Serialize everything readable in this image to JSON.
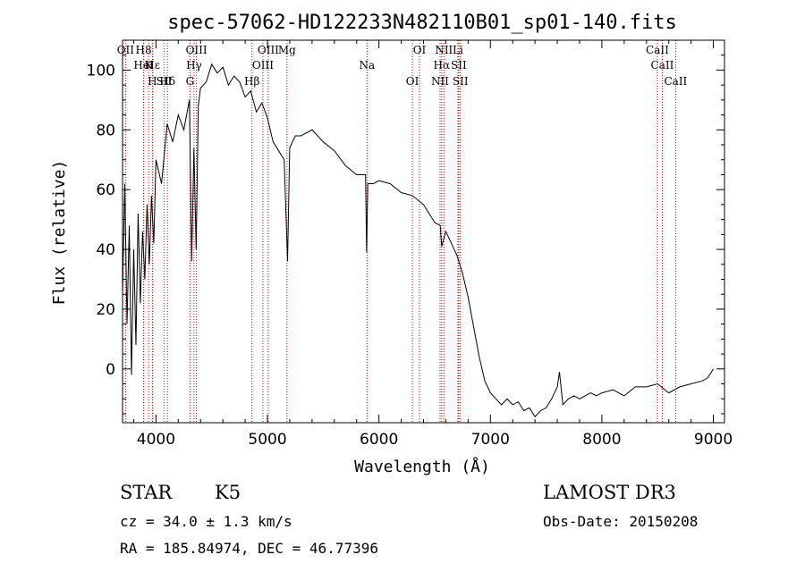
{
  "chart_data": {
    "type": "line",
    "title": "spec-57062-HD122233N482110B01_sp01-140.fits",
    "xlabel": "Wavelength (Å)",
    "ylabel": "Flux (relative)",
    "xlim": [
      3700,
      9100
    ],
    "ylim": [
      -18,
      110
    ],
    "xticks": [
      4000,
      5000,
      6000,
      7000,
      8000,
      9000
    ],
    "yticks": [
      0,
      20,
      40,
      60,
      80,
      100
    ],
    "grid": false,
    "series": [
      {
        "color": "#000000",
        "x": [
          3700,
          3720,
          3740,
          3760,
          3780,
          3800,
          3820,
          3840,
          3860,
          3880,
          3900,
          3920,
          3940,
          3960,
          3980,
          4000,
          4050,
          4100,
          4150,
          4200,
          4250,
          4300,
          4320,
          4340,
          4360,
          4380,
          4400,
          4450,
          4500,
          4550,
          4600,
          4650,
          4700,
          4750,
          4800,
          4850,
          4900,
          4950,
          5000,
          5050,
          5100,
          5150,
          5180,
          5200,
          5250,
          5300,
          5400,
          5500,
          5600,
          5700,
          5800,
          5880,
          5890,
          5900,
          5950,
          6000,
          6100,
          6200,
          6300,
          6400,
          6500,
          6550,
          6563,
          6600,
          6650,
          6700,
          6750,
          6800,
          6850,
          6900,
          6950,
          7000,
          7050,
          7100,
          7150,
          7200,
          7250,
          7300,
          7350,
          7400,
          7450,
          7500,
          7550,
          7600,
          7620,
          7650,
          7700,
          7750,
          7800,
          7850,
          7900,
          7950,
          8000,
          8100,
          8200,
          8300,
          8400,
          8500,
          8600,
          8700,
          8800,
          8900,
          8950,
          9000
        ],
        "y": [
          25,
          62,
          15,
          48,
          -2,
          40,
          8,
          52,
          22,
          46,
          30,
          55,
          35,
          58,
          42,
          70,
          62,
          82,
          76,
          85,
          80,
          90,
          36,
          74,
          40,
          88,
          94,
          96,
          102,
          99,
          101,
          95,
          98,
          96,
          91,
          93,
          86,
          89,
          84,
          76,
          73,
          70,
          36,
          74,
          78,
          78,
          80,
          76,
          73,
          68,
          65,
          65,
          39,
          62,
          62,
          63,
          62,
          59,
          58,
          55,
          49,
          48,
          41,
          46,
          42,
          38,
          32,
          24,
          14,
          4,
          -4,
          -8,
          -10,
          -12,
          -10,
          -12,
          -11,
          -14,
          -13,
          -16,
          -14,
          -13,
          -10,
          -6,
          -1,
          -12,
          -10,
          -9,
          -10,
          -9,
          -8,
          -9,
          -8,
          -7,
          -9,
          -6,
          -6,
          -5,
          -8,
          -6,
          -5,
          -4,
          -3,
          0
        ]
      }
    ],
    "spectral_lines": [
      {
        "label": "H8",
        "wavelength": 3889
      },
      {
        "label": "Hε",
        "wavelength": 3970
      },
      {
        "label": "Hδ",
        "wavelength": 4102
      },
      {
        "label": "OII",
        "wavelength": 3727
      },
      {
        "label": "HeI",
        "wavelength": 3889
      },
      {
        "label": "SII",
        "wavelength": 4072
      },
      {
        "label": "OIII",
        "wavelength": 4363
      },
      {
        "label": "Hγ",
        "wavelength": 4341
      },
      {
        "label": "G",
        "wavelength": 4305
      },
      {
        "label": "OIII",
        "wavelength": 5007
      },
      {
        "label": "OIII",
        "wavelength": 4959
      },
      {
        "label": "Hβ",
        "wavelength": 4861
      },
      {
        "label": "Mg",
        "wavelength": 5175
      },
      {
        "label": "Na",
        "wavelength": 5893
      },
      {
        "label": "OI",
        "wavelength": 6300
      },
      {
        "label": "OI",
        "wavelength": 6364
      },
      {
        "label": "Hα",
        "wavelength": 6563
      },
      {
        "label": "NII",
        "wavelength": 6548
      },
      {
        "label": "NII",
        "wavelength": 6583
      },
      {
        "label": "SII",
        "wavelength": 6716
      },
      {
        "label": "SII",
        "wavelength": 6731
      },
      {
        "label": "Li",
        "wavelength": 6708
      },
      {
        "label": "K",
        "wavelength": 3934
      },
      {
        "label": "H",
        "wavelength": 3968
      },
      {
        "label": "CaII",
        "wavelength": 8498
      },
      {
        "label": "CaII",
        "wavelength": 8542
      },
      {
        "label": "CaII",
        "wavelength": 8662
      }
    ]
  },
  "info": {
    "class_label": "STAR",
    "subclass": "K5",
    "survey": "LAMOST DR3",
    "cz": "cz = 34.0 ± 1.3 km/s",
    "obs_date": "Obs-Date: 20150208",
    "coords": "RA = 185.84974, DEC =  46.77396"
  },
  "colors": {
    "spectrum": "#000000",
    "line_markers": "#cc0000",
    "axes": "#000000"
  }
}
